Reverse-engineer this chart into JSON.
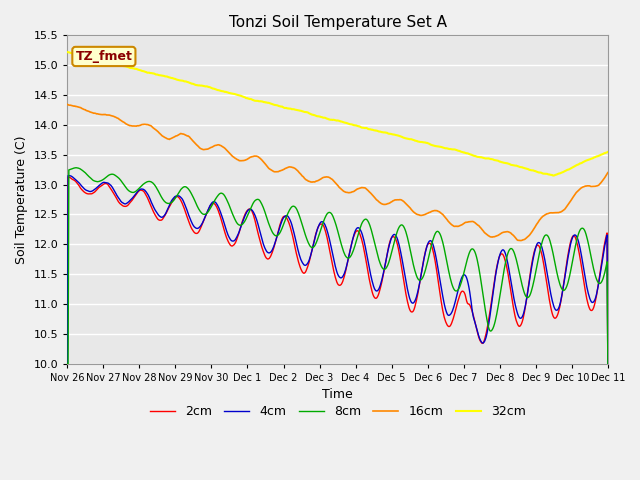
{
  "title": "Tonzi Soil Temperature Set A",
  "xlabel": "Time",
  "ylabel": "Soil Temperature (C)",
  "ylim": [
    10.0,
    15.5
  ],
  "yticks": [
    10.0,
    10.5,
    11.0,
    11.5,
    12.0,
    12.5,
    13.0,
    13.5,
    14.0,
    14.5,
    15.0,
    15.5
  ],
  "x_labels": [
    "Nov 26",
    "Nov 27",
    "Nov 28",
    "Nov 29",
    "Nov 30",
    "Dec 1",
    "Dec 2",
    "Dec 3",
    "Dec 4",
    "Dec 5",
    "Dec 6",
    "Dec 7",
    "Dec 8",
    "Dec 9",
    "Dec 10",
    "Dec 11"
  ],
  "colors": {
    "2cm": "#ff0000",
    "4cm": "#0000cc",
    "8cm": "#00aa00",
    "16cm": "#ff8800",
    "32cm": "#ffff00"
  },
  "legend_label": "TZ_fmet",
  "fig_bg": "#f0f0f0",
  "ax_bg": "#e8e8e8",
  "grid_color": "#ffffff"
}
